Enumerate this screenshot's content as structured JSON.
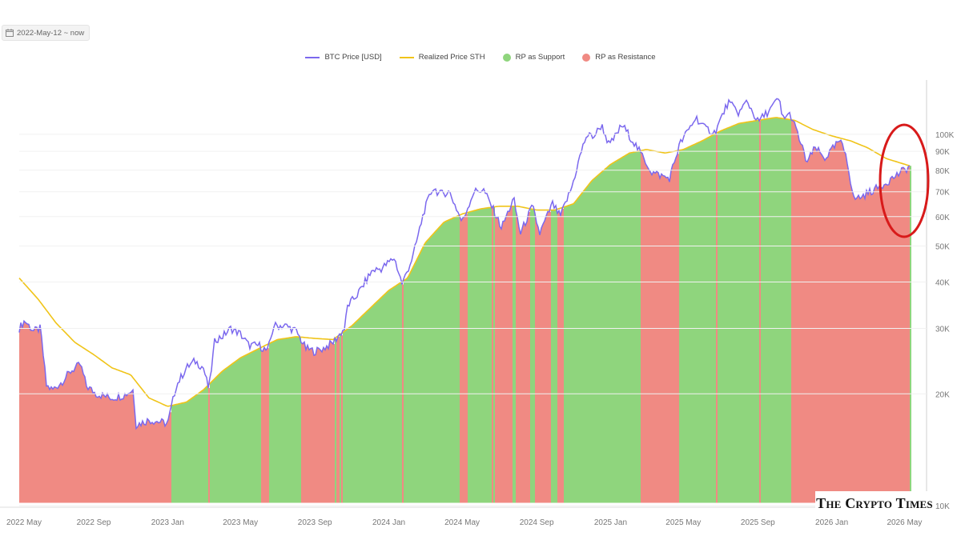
{
  "date_range": {
    "label": "2022-May-12 ~ now",
    "icon": "calendar-icon"
  },
  "watermark": "The Crypto Times",
  "colors": {
    "btc": "#7b68ee",
    "rp": "#f0c419",
    "support": "#8fd57d",
    "resistance": "#f08a83",
    "highlight": "#d81a1a"
  },
  "chart_data": {
    "type": "area",
    "legend": [
      {
        "name": "BTC Price [USD]",
        "kind": "line",
        "color": "#7b68ee"
      },
      {
        "name": "Realized Price STH",
        "kind": "line",
        "color": "#f0c419"
      },
      {
        "name": "RP as Support",
        "kind": "dot",
        "color": "#8fd57d"
      },
      {
        "name": "RP as Resistance",
        "kind": "dot",
        "color": "#f08a83"
      }
    ],
    "x_ticks": [
      "2022 May",
      "2022 Sep",
      "2023 Jan",
      "2023 May",
      "2023 Sep",
      "2024 Jan",
      "2024 May",
      "2024 Sep",
      "2025 Jan",
      "2025 May",
      "2025 Sep",
      "2026 Jan",
      "2026 May"
    ],
    "y_ticks": [
      "10K",
      "20K",
      "30K",
      "40K",
      "50K",
      "60K",
      "70K",
      "80K",
      "90K",
      "100K"
    ],
    "y_scale": "log",
    "ylim": [
      10000,
      140000
    ],
    "x_range": [
      "2022-05-01",
      "2026-05-15"
    ],
    "series": [
      {
        "name": "BTC Price [USD]",
        "points": [
          [
            "2022-05-01",
            30000
          ],
          [
            "2022-05-10",
            31500
          ],
          [
            "2022-05-25",
            29500
          ],
          [
            "2022-06-05",
            30000
          ],
          [
            "2022-06-15",
            21000
          ],
          [
            "2022-06-25",
            20500
          ],
          [
            "2022-07-10",
            21500
          ],
          [
            "2022-07-25",
            23000
          ],
          [
            "2022-08-10",
            24000
          ],
          [
            "2022-08-20",
            21000
          ],
          [
            "2022-09-05",
            20000
          ],
          [
            "2022-09-15",
            19800
          ],
          [
            "2022-10-01",
            19500
          ],
          [
            "2022-10-20",
            19800
          ],
          [
            "2022-11-05",
            20500
          ],
          [
            "2022-11-10",
            16500
          ],
          [
            "2022-12-01",
            17000
          ],
          [
            "2022-12-20",
            16800
          ],
          [
            "2023-01-01",
            16600
          ],
          [
            "2023-01-15",
            21000
          ],
          [
            "2023-02-01",
            23500
          ],
          [
            "2023-02-15",
            24500
          ],
          [
            "2023-03-01",
            23500
          ],
          [
            "2023-03-10",
            20500
          ],
          [
            "2023-03-20",
            28000
          ],
          [
            "2023-04-01",
            28500
          ],
          [
            "2023-04-15",
            30000
          ],
          [
            "2023-05-01",
            29000
          ],
          [
            "2023-05-15",
            27000
          ],
          [
            "2023-06-01",
            27000
          ],
          [
            "2023-06-15",
            26000
          ],
          [
            "2023-06-25",
            30500
          ],
          [
            "2023-07-15",
            30500
          ],
          [
            "2023-08-01",
            29500
          ],
          [
            "2023-08-17",
            26500
          ],
          [
            "2023-09-01",
            26000
          ],
          [
            "2023-09-15",
            26500
          ],
          [
            "2023-10-01",
            27500
          ],
          [
            "2023-10-20",
            30000
          ],
          [
            "2023-10-25",
            34500
          ],
          [
            "2023-11-10",
            37000
          ],
          [
            "2023-12-05",
            43000
          ],
          [
            "2023-12-20",
            43500
          ],
          [
            "2024-01-10",
            46500
          ],
          [
            "2024-01-23",
            39500
          ],
          [
            "2024-02-10",
            47000
          ],
          [
            "2024-02-28",
            62000
          ],
          [
            "2024-03-14",
            72000
          ],
          [
            "2024-03-25",
            69000
          ],
          [
            "2024-04-10",
            70000
          ],
          [
            "2024-04-20",
            64000
          ],
          [
            "2024-05-01",
            58000
          ],
          [
            "2024-05-20",
            70000
          ],
          [
            "2024-06-05",
            71000
          ],
          [
            "2024-06-25",
            61000
          ],
          [
            "2024-07-05",
            56000
          ],
          [
            "2024-07-25",
            67000
          ],
          [
            "2024-08-05",
            54000
          ],
          [
            "2024-08-25",
            64000
          ],
          [
            "2024-09-06",
            54000
          ],
          [
            "2024-09-27",
            65000
          ],
          [
            "2024-10-10",
            60000
          ],
          [
            "2024-10-29",
            72000
          ],
          [
            "2024-11-12",
            88000
          ],
          [
            "2024-11-22",
            99000
          ],
          [
            "2024-12-05",
            99000
          ],
          [
            "2024-12-17",
            106000
          ],
          [
            "2024-12-30",
            93000
          ],
          [
            "2025-01-20",
            106000
          ],
          [
            "2025-02-05",
            97000
          ],
          [
            "2025-02-25",
            86000
          ],
          [
            "2025-03-10",
            79000
          ],
          [
            "2025-04-08",
            76000
          ],
          [
            "2025-04-25",
            94000
          ],
          [
            "2025-05-10",
            103000
          ],
          [
            "2025-05-22",
            111000
          ],
          [
            "2025-06-05",
            104000
          ],
          [
            "2025-06-22",
            101000
          ],
          [
            "2025-07-14",
            122000
          ],
          [
            "2025-08-01",
            114000
          ],
          [
            "2025-08-14",
            123000
          ],
          [
            "2025-09-01",
            108000
          ],
          [
            "2025-09-20",
            116000
          ],
          [
            "2025-10-06",
            125000
          ],
          [
            "2025-10-11",
            111000
          ],
          [
            "2025-10-25",
            113000
          ],
          [
            "2025-11-05",
            101000
          ],
          [
            "2025-11-21",
            84000
          ],
          [
            "2025-12-05",
            92000
          ],
          [
            "2025-12-20",
            86000
          ],
          [
            "2026-01-14",
            96000
          ],
          [
            "2026-01-25",
            88000
          ],
          [
            "2026-02-06",
            67000
          ],
          [
            "2026-02-20",
            68000
          ],
          [
            "2026-03-05",
            70000
          ],
          [
            "2026-03-20",
            72000
          ],
          [
            "2026-04-10",
            76000
          ],
          [
            "2026-04-25",
            79000
          ],
          [
            "2026-05-05",
            81000
          ],
          [
            "2026-05-12",
            82000
          ]
        ]
      },
      {
        "name": "Realized Price STH",
        "points": [
          [
            "2022-05-01",
            41000
          ],
          [
            "2022-06-01",
            36000
          ],
          [
            "2022-07-01",
            31000
          ],
          [
            "2022-08-01",
            27500
          ],
          [
            "2022-09-01",
            25500
          ],
          [
            "2022-10-01",
            23500
          ],
          [
            "2022-11-01",
            22500
          ],
          [
            "2022-12-01",
            19500
          ],
          [
            "2023-01-01",
            18500
          ],
          [
            "2023-02-01",
            19000
          ],
          [
            "2023-03-01",
            20500
          ],
          [
            "2023-04-01",
            23000
          ],
          [
            "2023-05-01",
            25000
          ],
          [
            "2023-06-01",
            26500
          ],
          [
            "2023-07-01",
            28000
          ],
          [
            "2023-08-01",
            28500
          ],
          [
            "2023-09-01",
            28200
          ],
          [
            "2023-10-01",
            28000
          ],
          [
            "2023-11-01",
            30500
          ],
          [
            "2023-12-01",
            34000
          ],
          [
            "2024-01-01",
            38000
          ],
          [
            "2024-02-01",
            41000
          ],
          [
            "2024-03-01",
            51000
          ],
          [
            "2024-04-01",
            58000
          ],
          [
            "2024-05-01",
            61000
          ],
          [
            "2024-06-01",
            63000
          ],
          [
            "2024-07-01",
            64000
          ],
          [
            "2024-08-01",
            64000
          ],
          [
            "2024-09-01",
            62500
          ],
          [
            "2024-10-01",
            62500
          ],
          [
            "2024-11-01",
            65000
          ],
          [
            "2024-12-01",
            75000
          ],
          [
            "2025-01-01",
            83000
          ],
          [
            "2025-02-01",
            89000
          ],
          [
            "2025-03-01",
            91000
          ],
          [
            "2025-04-01",
            89000
          ],
          [
            "2025-05-01",
            91000
          ],
          [
            "2025-06-01",
            96000
          ],
          [
            "2025-07-01",
            102000
          ],
          [
            "2025-08-01",
            107000
          ],
          [
            "2025-09-01",
            109000
          ],
          [
            "2025-10-01",
            111000
          ],
          [
            "2025-11-01",
            109000
          ],
          [
            "2025-12-01",
            103000
          ],
          [
            "2026-01-01",
            99000
          ],
          [
            "2026-02-01",
            96000
          ],
          [
            "2026-03-01",
            92000
          ],
          [
            "2026-04-01",
            86000
          ],
          [
            "2026-05-12",
            82000
          ]
        ]
      }
    ]
  }
}
